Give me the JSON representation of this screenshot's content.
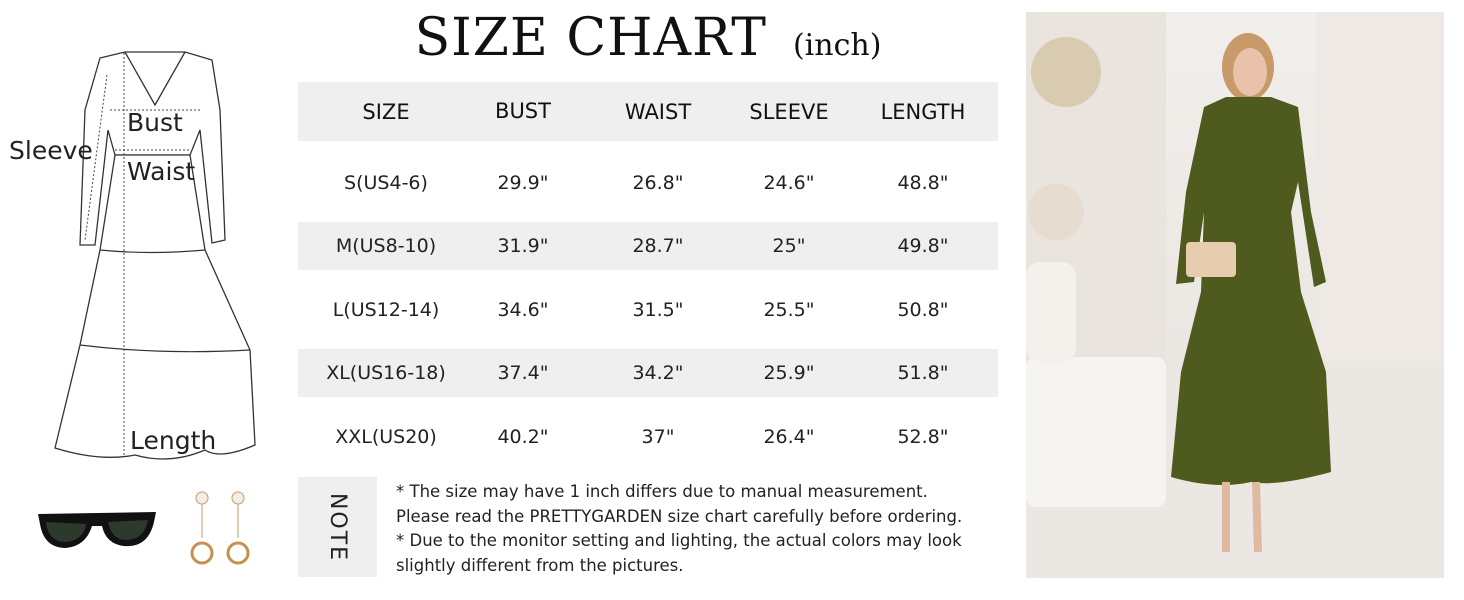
{
  "title": {
    "main": "SIZE CHART",
    "unit": "(inch)"
  },
  "diagram": {
    "labels": {
      "sleeve": "Sleeve",
      "bust": "Bust",
      "waist": "Waist",
      "length": "Length"
    }
  },
  "table": {
    "headers": [
      "SIZE",
      "BUST",
      "WAIST",
      "SLEEVE",
      "LENGTH"
    ],
    "rows": [
      [
        "S(US4-6)",
        "29.9\"",
        "26.8\"",
        "24.6\"",
        "48.8\""
      ],
      [
        "M(US8-10)",
        "31.9\"",
        "28.7\"",
        "25\"",
        "49.8\""
      ],
      [
        "L(US12-14)",
        "34.6\"",
        "31.5\"",
        "25.5\"",
        "50.8\""
      ],
      [
        "XL(US16-18)",
        "37.4\"",
        "34.2\"",
        "25.9\"",
        "51.8\""
      ],
      [
        "XXL(US20)",
        "40.2\"",
        "37\"",
        "26.4\"",
        "52.8\""
      ]
    ]
  },
  "note": {
    "label": "NOTE",
    "lines": [
      "* The size may have 1 inch differs due to manual measurement.",
      "Please read the PRETTYGARDEN size chart carefully before ordering.",
      "* Due to the monitor setting and lighting, the actual colors may look",
      "slightly different from the pictures."
    ]
  },
  "colors": {
    "band": "#efefef",
    "dress": "#4f5a1e"
  }
}
